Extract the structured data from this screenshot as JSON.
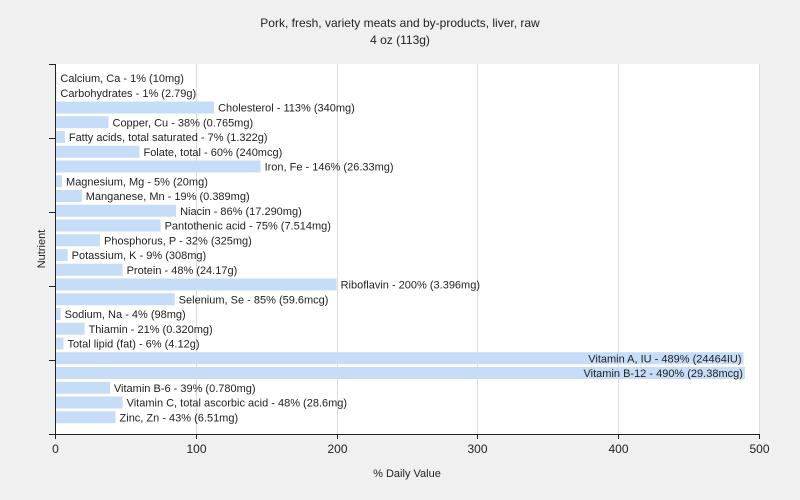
{
  "chart_data": {
    "type": "bar",
    "orientation": "horizontal",
    "title": "Pork, fresh, variety meats and by-products, liver, raw",
    "subtitle": "4 oz (113g)",
    "xlabel": "% Daily Value",
    "ylabel": "Nutrient",
    "xlim": [
      0,
      500
    ],
    "xticks": [
      0,
      100,
      200,
      300,
      400,
      500
    ],
    "grid": true,
    "bar_color": "#c6dcf7",
    "categories": [
      "Calcium, Ca",
      "Carbohydrates",
      "Cholesterol",
      "Copper, Cu",
      "Fatty acids, total saturated",
      "Folate, total",
      "Iron, Fe",
      "Magnesium, Mg",
      "Manganese, Mn",
      "Niacin",
      "Pantothenic acid",
      "Phosphorus, P",
      "Potassium, K",
      "Protein",
      "Riboflavin",
      "Selenium, Se",
      "Sodium, Na",
      "Thiamin",
      "Total lipid (fat)",
      "Vitamin A, IU",
      "Vitamin B-12",
      "Vitamin B-6",
      "Vitamin C, total ascorbic acid",
      "Zinc, Zn"
    ],
    "values": [
      1,
      1,
      113,
      38,
      7,
      60,
      146,
      5,
      19,
      86,
      75,
      32,
      9,
      48,
      200,
      85,
      4,
      21,
      6,
      489,
      490,
      39,
      48,
      43
    ],
    "labels": [
      "Calcium, Ca - 1% (10mg)",
      "Carbohydrates - 1% (2.79g)",
      "Cholesterol - 113% (340mg)",
      "Copper, Cu - 38% (0.765mg)",
      "Fatty acids, total saturated - 7% (1.322g)",
      "Folate, total - 60% (240mcg)",
      "Iron, Fe - 146% (26.33mg)",
      "Magnesium, Mg - 5% (20mg)",
      "Manganese, Mn - 19% (0.389mg)",
      "Niacin - 86% (17.290mg)",
      "Pantothenic acid - 75% (7.514mg)",
      "Phosphorus, P - 32% (325mg)",
      "Potassium, K - 9% (308mg)",
      "Protein - 48% (24.17g)",
      "Riboflavin - 200% (3.396mg)",
      "Selenium, Se - 85% (59.6mcg)",
      "Sodium, Na - 4% (98mg)",
      "Thiamin - 21% (0.320mg)",
      "Total lipid (fat) - 6% (4.12g)",
      "Vitamin A, IU - 489% (24464IU)",
      "Vitamin B-12 - 490% (29.38mcg)",
      "Vitamin B-6 - 39% (0.780mg)",
      "Vitamin C, total ascorbic acid - 48% (28.6mg)",
      "Zinc, Zn - 43% (6.51mg)"
    ]
  }
}
